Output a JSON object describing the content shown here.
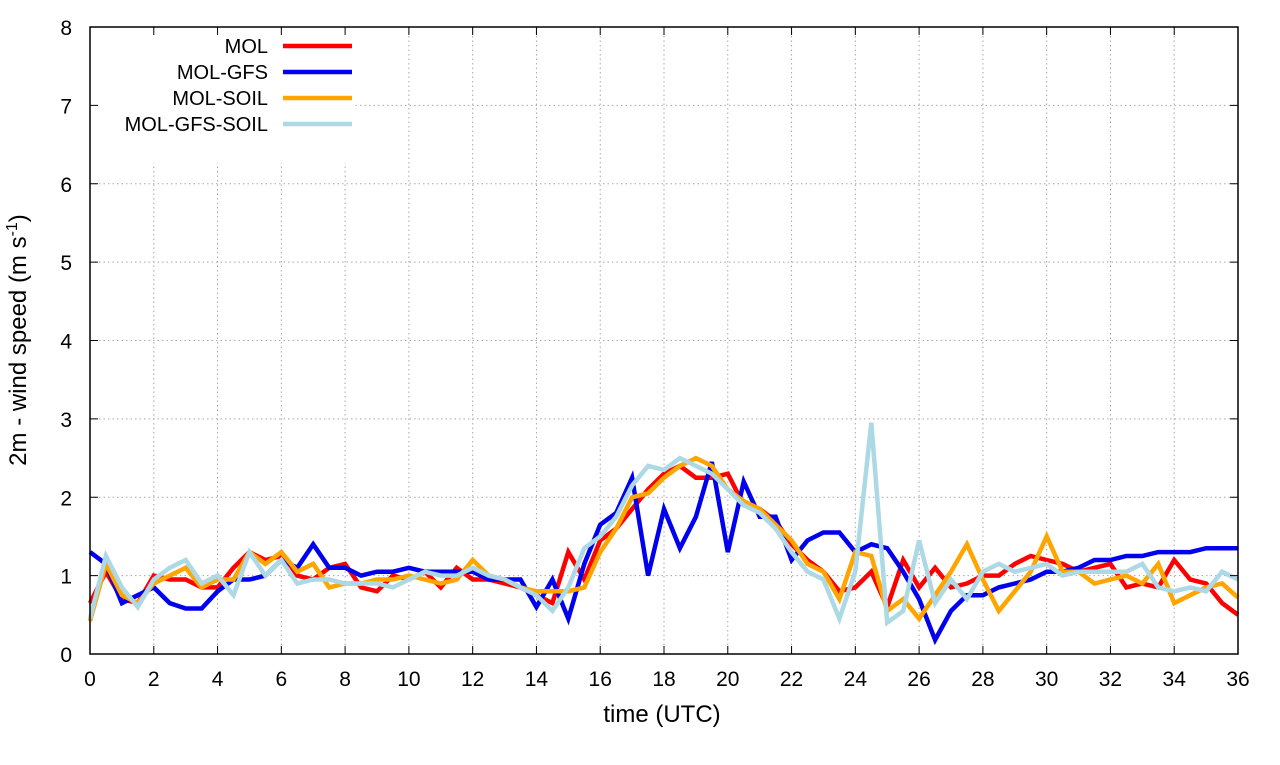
{
  "chart_data": {
    "type": "line",
    "xlabel": "time (UTC)",
    "ylabel": "2m - wind speed  (m s",
    "ylabel_sup": "-1",
    "ylabel_close": ")",
    "xlim": [
      0,
      36
    ],
    "ylim": [
      0,
      8
    ],
    "xticks": [
      0,
      2,
      4,
      6,
      8,
      10,
      12,
      14,
      16,
      18,
      20,
      22,
      24,
      26,
      28,
      30,
      32,
      34,
      36
    ],
    "yticks": [
      0,
      1,
      2,
      3,
      4,
      5,
      6,
      7,
      8
    ],
    "grid": true,
    "legend_position": "top-left",
    "series": [
      {
        "name": "MOL",
        "color": "#ff0000",
        "x": [
          0,
          0.5,
          1,
          1.5,
          2,
          2.5,
          3,
          3.5,
          4,
          4.5,
          5,
          5.5,
          6,
          6.5,
          7,
          7.5,
          8,
          8.5,
          9,
          9.5,
          10,
          10.5,
          11,
          11.5,
          12,
          12.5,
          13,
          13.5,
          14,
          14.5,
          15,
          15.5,
          16,
          16.5,
          17,
          17.5,
          18,
          18.5,
          19,
          19.5,
          20,
          20.5,
          21,
          21.5,
          22,
          22.5,
          23,
          23.5,
          24,
          24.5,
          25,
          25.5,
          26,
          26.5,
          27,
          27.5,
          28,
          28.5,
          29,
          29.5,
          30,
          30.5,
          31,
          31.5,
          32,
          32.5,
          33,
          33.5,
          34,
          34.5,
          35,
          35.5,
          36
        ],
        "y": [
          0.65,
          1.05,
          0.7,
          0.65,
          1.0,
          0.95,
          0.95,
          0.85,
          0.85,
          1.1,
          1.3,
          1.2,
          1.25,
          1.0,
          0.95,
          1.1,
          1.15,
          0.85,
          0.8,
          1.0,
          0.95,
          1.05,
          0.85,
          1.1,
          0.95,
          0.95,
          0.9,
          0.85,
          0.75,
          0.65,
          1.3,
          0.95,
          1.45,
          1.6,
          1.85,
          2.1,
          2.3,
          2.4,
          2.25,
          2.25,
          2.3,
          1.9,
          1.85,
          1.7,
          1.4,
          1.2,
          1.05,
          0.8,
          0.85,
          1.05,
          0.6,
          1.2,
          0.85,
          1.1,
          0.85,
          0.9,
          1.0,
          1.0,
          1.15,
          1.25,
          1.2,
          1.15,
          1.05,
          1.1,
          1.15,
          0.85,
          0.9,
          0.85,
          1.2,
          0.95,
          0.9,
          0.65,
          0.5
        ]
      },
      {
        "name": "MOL-GFS",
        "color": "#0000ee",
        "x": [
          0,
          0.5,
          1,
          1.5,
          2,
          2.5,
          3,
          3.5,
          4,
          4.5,
          5,
          5.5,
          6,
          6.5,
          7,
          7.5,
          8,
          8.5,
          9,
          9.5,
          10,
          10.5,
          11,
          11.5,
          12,
          12.5,
          13,
          13.5,
          14,
          14.5,
          15,
          15.5,
          16,
          16.5,
          17,
          17.5,
          18,
          18.5,
          19,
          19.5,
          20,
          20.5,
          21,
          21.5,
          22,
          22.5,
          23,
          23.5,
          24,
          24.5,
          25,
          25.5,
          26,
          26.5,
          27,
          27.5,
          28,
          28.5,
          29,
          29.5,
          30,
          30.5,
          31,
          31.5,
          32,
          32.5,
          33,
          33.5,
          34,
          34.5,
          35,
          35.5,
          36
        ],
        "y": [
          1.3,
          1.15,
          0.65,
          0.75,
          0.85,
          0.65,
          0.58,
          0.58,
          0.8,
          0.95,
          0.95,
          1.0,
          1.2,
          1.1,
          1.4,
          1.1,
          1.1,
          1.0,
          1.05,
          1.05,
          1.1,
          1.05,
          1.05,
          1.05,
          1.05,
          0.95,
          0.95,
          0.95,
          0.6,
          0.95,
          0.45,
          1.15,
          1.65,
          1.8,
          2.25,
          1.0,
          1.85,
          1.35,
          1.75,
          2.45,
          1.3,
          2.2,
          1.75,
          1.75,
          1.2,
          1.45,
          1.55,
          1.55,
          1.3,
          1.4,
          1.35,
          1.05,
          0.7,
          0.18,
          0.55,
          0.75,
          0.75,
          0.85,
          0.9,
          0.95,
          1.05,
          1.05,
          1.1,
          1.2,
          1.2,
          1.25,
          1.25,
          1.3,
          1.3,
          1.3,
          1.35,
          1.35,
          1.35
        ]
      },
      {
        "name": "MOL-SOIL",
        "color": "#ffa500",
        "x": [
          0,
          0.5,
          1,
          1.5,
          2,
          2.5,
          3,
          3.5,
          4,
          4.5,
          5,
          5.5,
          6,
          6.5,
          7,
          7.5,
          8,
          8.5,
          9,
          9.5,
          10,
          10.5,
          11,
          11.5,
          12,
          12.5,
          13,
          13.5,
          14,
          14.5,
          15,
          15.5,
          16,
          16.5,
          17,
          17.5,
          18,
          18.5,
          19,
          19.5,
          20,
          20.5,
          21,
          21.5,
          22,
          22.5,
          23,
          23.5,
          24,
          24.5,
          25,
          25.5,
          26,
          26.5,
          27,
          27.5,
          28,
          28.5,
          29,
          29.5,
          30,
          30.5,
          31,
          31.5,
          32,
          32.5,
          33,
          33.5,
          34,
          34.5,
          35,
          35.5,
          36
        ],
        "y": [
          0.42,
          1.15,
          0.75,
          0.65,
          0.9,
          1.0,
          1.1,
          0.85,
          0.95,
          0.95,
          1.3,
          1.15,
          1.3,
          1.05,
          1.15,
          0.85,
          0.9,
          0.9,
          0.95,
          0.95,
          1.0,
          0.95,
          0.9,
          0.95,
          1.2,
          1.0,
          0.95,
          0.85,
          0.8,
          0.8,
          0.8,
          0.85,
          1.3,
          1.6,
          2.0,
          2.05,
          2.25,
          2.4,
          2.5,
          2.4,
          2.1,
          1.95,
          1.85,
          1.65,
          1.45,
          1.15,
          1.05,
          0.7,
          1.3,
          1.25,
          0.55,
          0.7,
          0.45,
          0.75,
          1.05,
          1.4,
          0.95,
          0.55,
          0.8,
          1.05,
          1.5,
          1.05,
          1.05,
          0.9,
          0.95,
          1.0,
          0.9,
          1.15,
          0.65,
          0.75,
          0.85,
          0.9,
          0.72
        ]
      },
      {
        "name": "MOL-GFS-SOIL",
        "color": "#add8e6",
        "x": [
          0,
          0.5,
          1,
          1.5,
          2,
          2.5,
          3,
          3.5,
          4,
          4.5,
          5,
          5.5,
          6,
          6.5,
          7,
          7.5,
          8,
          8.5,
          9,
          9.5,
          10,
          10.5,
          11,
          11.5,
          12,
          12.5,
          13,
          13.5,
          14,
          14.5,
          15,
          15.5,
          16,
          16.5,
          17,
          17.5,
          18,
          18.5,
          19,
          19.5,
          20,
          20.5,
          21,
          21.5,
          22,
          22.5,
          23,
          23.5,
          24,
          24.5,
          25,
          25.5,
          26,
          26.5,
          27,
          27.5,
          28,
          28.5,
          29,
          29.5,
          30,
          30.5,
          31,
          31.5,
          32,
          32.5,
          33,
          33.5,
          34,
          34.5,
          35,
          35.5,
          36
        ],
        "y": [
          0.45,
          1.25,
          0.85,
          0.6,
          0.95,
          1.1,
          1.2,
          0.9,
          1.0,
          0.75,
          1.3,
          1.0,
          1.2,
          0.9,
          0.95,
          0.95,
          0.9,
          0.9,
          0.9,
          0.85,
          0.95,
          1.05,
          1.0,
          1.0,
          1.1,
          1.0,
          0.95,
          0.85,
          0.75,
          0.55,
          0.85,
          1.35,
          1.5,
          1.75,
          2.15,
          2.4,
          2.35,
          2.5,
          2.4,
          2.3,
          2.1,
          1.9,
          1.8,
          1.6,
          1.3,
          1.05,
          0.95,
          0.45,
          1.05,
          2.95,
          0.4,
          0.55,
          1.45,
          0.65,
          0.95,
          0.7,
          1.05,
          1.15,
          1.05,
          1.1,
          1.15,
          1.0,
          1.05,
          1.05,
          1.05,
          1.05,
          1.15,
          0.85,
          0.8,
          0.85,
          0.8,
          1.05,
          0.95
        ]
      }
    ]
  }
}
